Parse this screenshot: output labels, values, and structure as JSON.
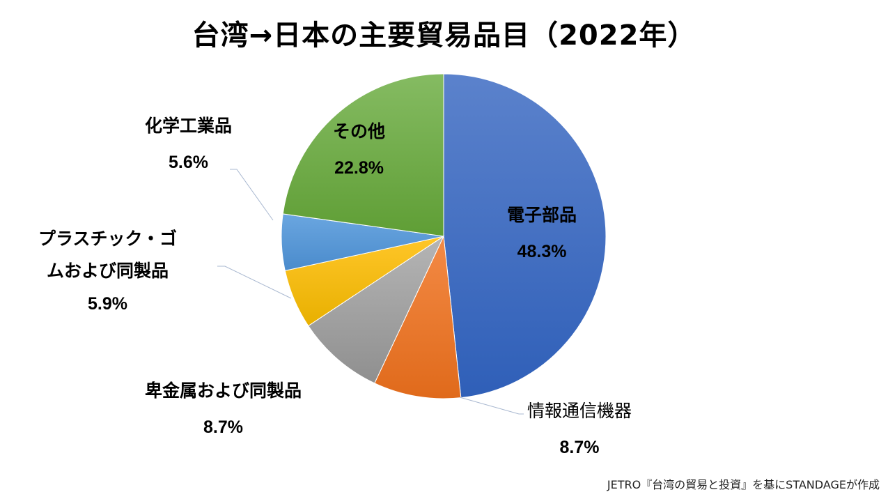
{
  "chart_data": {
    "type": "pie",
    "title": "台湾→日本の主要貿易品目（2022年）",
    "start_angle": "12 o'clock, clockwise",
    "categories": [
      "電子部品",
      "情報通信機器",
      "卑金属および同製品",
      "プラスチック・ゴムおよび同製品",
      "化学工業品",
      "その他"
    ],
    "values": [
      48.3,
      8.7,
      8.7,
      5.9,
      5.6,
      22.8
    ],
    "labels": [
      "48.3%",
      "8.7%",
      "8.7%",
      "5.9%",
      "5.6%",
      "22.8%"
    ],
    "colors": [
      "#4472C4",
      "#ED7D31",
      "#A5A5A5",
      "#FFC000",
      "#5B9BD5",
      "#70AD47"
    ],
    "unit": "%",
    "legend": "none (data labels with leader lines)"
  },
  "title": "台湾→日本の主要貿易品目（2022年）",
  "labels": {
    "electronic": {
      "name": "電子部品",
      "pct": "48.3%"
    },
    "ict": {
      "name": "情報通信機器",
      "pct": "8.7%"
    },
    "metal": {
      "name": "卑金属および同製品",
      "pct": "8.7%"
    },
    "plastic": {
      "name1": "プラスチック・ゴ",
      "name2": "ムおよび同製品",
      "pct": "5.9%"
    },
    "chemical": {
      "name": "化学工業品",
      "pct": "5.6%"
    },
    "other": {
      "name": "その他",
      "pct": "22.8%"
    }
  },
  "source": "JETRO『台湾の貿易と投資』を基にSTANDAGEが作成"
}
